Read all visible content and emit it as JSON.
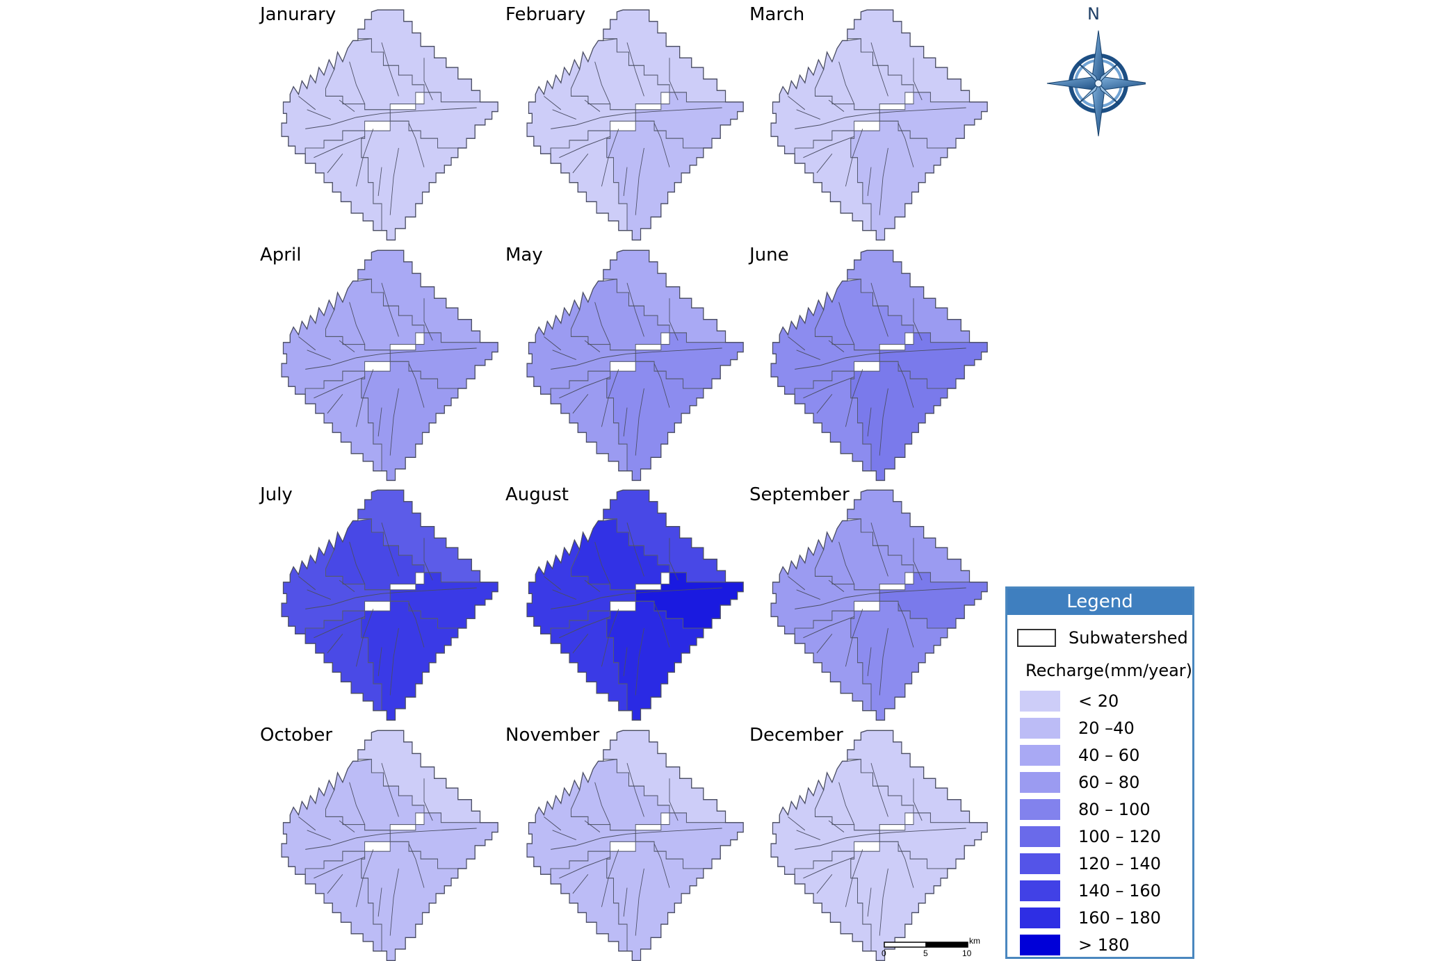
{
  "maps": [
    {
      "month": "Janurary",
      "fills": {
        "a": "#cdcdf8",
        "b": "#cdcdf8",
        "c": "#cdcdf8",
        "d": "#cdcdf8",
        "e": "#cdcdf8",
        "f": "#cdcdf8"
      }
    },
    {
      "month": "February",
      "fills": {
        "a": "#cdcdf8",
        "b": "#cdcdf8",
        "c": "#bcbcf6",
        "d": "#cdcdf8",
        "e": "#bcbcf6",
        "f": "#cdcdf8"
      }
    },
    {
      "month": "March",
      "fills": {
        "a": "#cdcdf8",
        "b": "#cdcdf8",
        "c": "#bcbcf6",
        "d": "#cdcdf8",
        "e": "#bcbcf6",
        "f": "#cdcdf8"
      }
    },
    {
      "month": "April",
      "fills": {
        "a": "#a9a9f4",
        "b": "#a9a9f4",
        "c": "#9b9bf1",
        "d": "#a9a9f4",
        "e": "#9b9bf1",
        "f": "#a9a9f4"
      }
    },
    {
      "month": "May",
      "fills": {
        "a": "#a9a9f4",
        "b": "#9b9bf1",
        "c": "#8c8cef",
        "d": "#9b9bf1",
        "e": "#8c8cef",
        "f": "#9b9bf1"
      }
    },
    {
      "month": "June",
      "fills": {
        "a": "#9b9bf1",
        "b": "#8c8cef",
        "c": "#7a7aeb",
        "d": "#8c8cef",
        "e": "#7a7aeb",
        "f": "#8c8cef"
      }
    },
    {
      "month": "July",
      "fills": {
        "a": "#5c5ce8",
        "b": "#4848e6",
        "c": "#3a3ae6",
        "d": "#5252e7",
        "e": "#3a3ae6",
        "f": "#4a4ae6"
      }
    },
    {
      "month": "August",
      "fills": {
        "a": "#4848e6",
        "b": "#3232e5",
        "c": "#1a1ae0",
        "d": "#3a3ae6",
        "e": "#2a2ae4",
        "f": "#3a3ae6"
      }
    },
    {
      "month": "September",
      "fills": {
        "a": "#9b9bf1",
        "b": "#9b9bf1",
        "c": "#7a7aeb",
        "d": "#9b9bf1",
        "e": "#8c8cef",
        "f": "#9b9bf1"
      }
    },
    {
      "month": "October",
      "fills": {
        "a": "#cdcdf8",
        "b": "#bcbcf6",
        "c": "#bcbcf6",
        "d": "#bcbcf6",
        "e": "#bcbcf6",
        "f": "#bcbcf6"
      }
    },
    {
      "month": "November",
      "fills": {
        "a": "#cdcdf8",
        "b": "#bcbcf6",
        "c": "#bcbcf6",
        "d": "#bcbcf6",
        "e": "#bcbcf6",
        "f": "#bcbcf6"
      }
    },
    {
      "month": "December",
      "fills": {
        "a": "#cdcdf8",
        "b": "#cdcdf8",
        "c": "#cdcdf8",
        "d": "#cdcdf8",
        "e": "#cdcdf8",
        "f": "#cdcdf8"
      }
    }
  ],
  "compass": {
    "label": "N"
  },
  "legend": {
    "title": "Legend",
    "subwatershed_label": "Subwatershed",
    "heading": "Recharge(mm/year)",
    "items": [
      {
        "label": "< 20",
        "color": "#cdcdf8"
      },
      {
        "label": "20 –40",
        "color": "#bcbcf6"
      },
      {
        "label": "40 – 60",
        "color": "#a9a9f4"
      },
      {
        "label": "60 – 80",
        "color": "#9b9bf1"
      },
      {
        "label": "80 – 100",
        "color": "#8282ed"
      },
      {
        "label": "100 – 120",
        "color": "#6a6aea"
      },
      {
        "label": "120 – 140",
        "color": "#5454e8"
      },
      {
        "label": "140 – 160",
        "color": "#4141e6"
      },
      {
        "label": "160 – 180",
        "color": "#2e2ee4"
      },
      {
        "label": "> 180",
        "color": "#0000d8"
      }
    ]
  },
  "scalebar": {
    "unit": "km",
    "ticks": [
      "0",
      "5",
      "10"
    ]
  }
}
